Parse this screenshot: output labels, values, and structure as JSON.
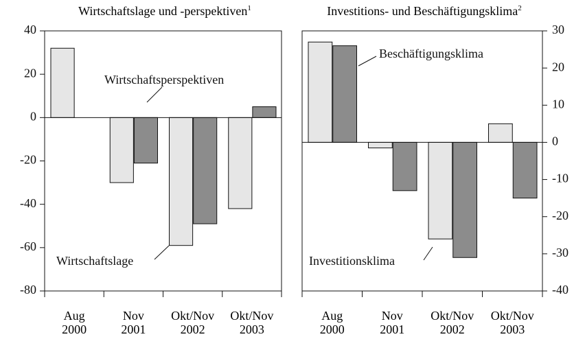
{
  "chart_data": [
    {
      "type": "bar",
      "title": "Wirtschaftslage und -perspektiven",
      "title_note": "1",
      "categories": [
        "Aug\n2000",
        "Nov\n2001",
        "Okt/Nov\n2002",
        "Okt/Nov\n2003"
      ],
      "series": [
        {
          "name": "Wirtschaftslage",
          "color": "#e6e6e6",
          "values": [
            32,
            -30,
            -59,
            -42
          ]
        },
        {
          "name": "Wirtschaftsperspektiven",
          "color": "#8c8c8c",
          "values": [
            null,
            -21,
            -49,
            5
          ]
        }
      ],
      "ylim": [
        -80,
        40
      ],
      "yticks": [
        -80,
        -60,
        -40,
        -20,
        0,
        20,
        40
      ],
      "yaxis_side": "left"
    },
    {
      "type": "bar",
      "title": "Investitions- und Beschäftigungsklima",
      "title_note": "2",
      "categories": [
        "Aug\n2000",
        "Nov\n2001",
        "Okt/Nov\n2002",
        "Okt/Nov\n2003"
      ],
      "series": [
        {
          "name": "Investitionsklima",
          "color": "#e6e6e6",
          "values": [
            27,
            -1.5,
            -26,
            5
          ]
        },
        {
          "name": "Beschäftigungsklima",
          "color": "#8c8c8c",
          "values": [
            26,
            -13,
            -31,
            -15
          ]
        }
      ],
      "ylim": [
        -40,
        30
      ],
      "yticks": [
        -40,
        -30,
        -20,
        -10,
        0,
        10,
        20,
        30
      ],
      "yaxis_side": "right"
    }
  ]
}
